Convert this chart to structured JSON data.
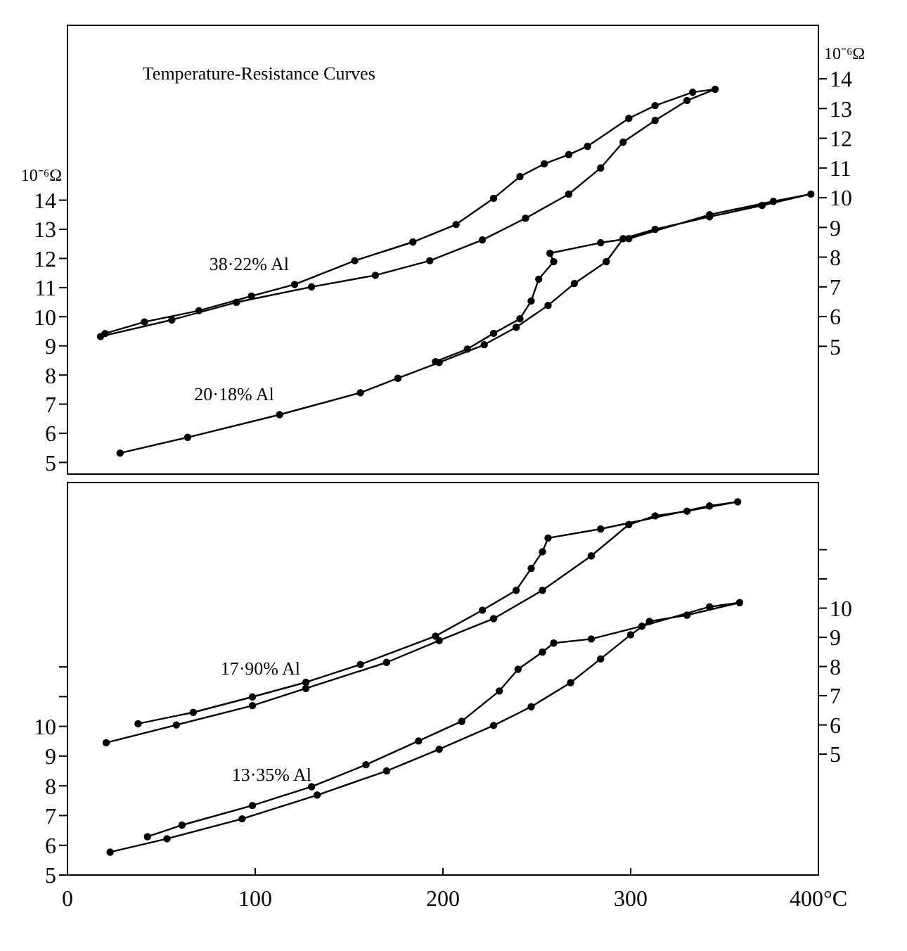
{
  "chart_data": [
    {
      "type": "line",
      "title": "Temperature-Resistance Curves",
      "ylabel": "10⁻⁶Ω",
      "y2label": "10⁻⁶Ω",
      "marker": "circle",
      "tick_labels": "y",
      "xlim": [
        0,
        400
      ],
      "ylim": [
        4.6,
        20
      ],
      "yticks": [
        5,
        6,
        7,
        8,
        9,
        10,
        11,
        12,
        13,
        14
      ],
      "y2lim": [
        0.7,
        15.8
      ],
      "y2ticks": [
        5,
        6,
        7,
        8,
        9,
        10,
        11,
        12,
        13,
        14
      ],
      "series": [
        {
          "name": "20·18% Al",
          "color": "#000000",
          "x": [
            28,
            64,
            113,
            156,
            176,
            198,
            222,
            239,
            256,
            270,
            287,
            296,
            313,
            342,
            370,
            396,
            376,
            342,
            299,
            284,
            257,
            259,
            251,
            247,
            241,
            227,
            213,
            196
          ],
          "values": [
            5.32,
            5.86,
            6.64,
            7.39,
            7.89,
            8.43,
            9.04,
            9.64,
            10.39,
            11.14,
            11.89,
            12.68,
            13.0,
            13.43,
            13.82,
            14.21,
            13.96,
            13.5,
            12.68,
            12.54,
            12.18,
            11.89,
            11.29,
            10.54,
            9.93,
            9.43,
            8.89,
            8.46
          ]
        },
        {
          "name": "38·22% Al",
          "color": "#000000",
          "axis": "y2",
          "x": [
            17.6,
            55.6,
            90,
            130,
            164,
            193,
            221,
            244,
            267,
            284,
            296,
            313,
            330,
            345,
            333,
            313,
            299,
            277,
            267,
            254,
            241,
            227,
            207,
            184,
            153,
            121,
            98,
            70,
            41,
            20
          ],
          "values": [
            5.33,
            5.89,
            6.48,
            7.0,
            7.39,
            7.88,
            8.58,
            9.31,
            10.12,
            11.0,
            11.87,
            12.6,
            13.27,
            13.65,
            13.55,
            13.1,
            12.67,
            11.73,
            11.45,
            11.14,
            10.71,
            9.98,
            9.1,
            8.51,
            7.88,
            7.08,
            6.69,
            6.2,
            5.82,
            5.43
          ]
        }
      ]
    },
    {
      "type": "line",
      "marker": "circle",
      "xlim": [
        0,
        400
      ],
      "xticks": [
        0,
        100,
        200,
        300,
        {
          "value": 400,
          "label": "400°C"
        }
      ],
      "ylim": [
        5,
        18.2
      ],
      "yticks": [
        5,
        6,
        7,
        8,
        9,
        10,
        {
          "value": 11,
          "label": null
        },
        {
          "value": 12,
          "label": null
        }
      ],
      "y2lim": [
        0.86,
        14.3
      ],
      "y2ticks": [
        5,
        6,
        7,
        8,
        9,
        10,
        {
          "value": 11,
          "label": null
        },
        {
          "value": 12,
          "label": null
        }
      ],
      "series": [
        {
          "name": "13·35% Al",
          "color": "#000000",
          "x": [
            22.7,
            53,
            93,
            133,
            170,
            198,
            227,
            247,
            268,
            284,
            300,
            310,
            330,
            358,
            342,
            306,
            279,
            259,
            253,
            240,
            230,
            210,
            187,
            159,
            130,
            98.5,
            61,
            42.6
          ],
          "values": [
            5.77,
            6.22,
            6.89,
            7.69,
            8.5,
            9.23,
            10.03,
            10.66,
            11.47,
            12.27,
            13.08,
            13.53,
            13.74,
            14.16,
            14.02,
            13.37,
            12.94,
            12.8,
            12.5,
            11.92,
            11.19,
            10.17,
            9.51,
            8.71,
            7.97,
            7.34,
            6.68,
            6.29
          ]
        },
        {
          "name": "17·90% Al",
          "color": "#000000",
          "axis": "y2",
          "x": [
            20.6,
            58,
            98.5,
            127,
            170,
            198,
            227,
            253,
            279,
            299,
            313,
            330,
            357,
            342,
            284,
            256,
            253,
            247,
            239,
            221,
            196,
            156,
            127,
            98.5,
            67,
            37.6
          ],
          "values": [
            5.39,
            6.0,
            6.66,
            7.25,
            8.14,
            8.89,
            9.64,
            10.61,
            11.79,
            12.86,
            13.16,
            13.32,
            13.64,
            13.5,
            12.71,
            12.4,
            11.93,
            11.36,
            10.61,
            9.93,
            9.04,
            8.07,
            7.46,
            6.96,
            6.43,
            6.04
          ]
        }
      ]
    }
  ]
}
